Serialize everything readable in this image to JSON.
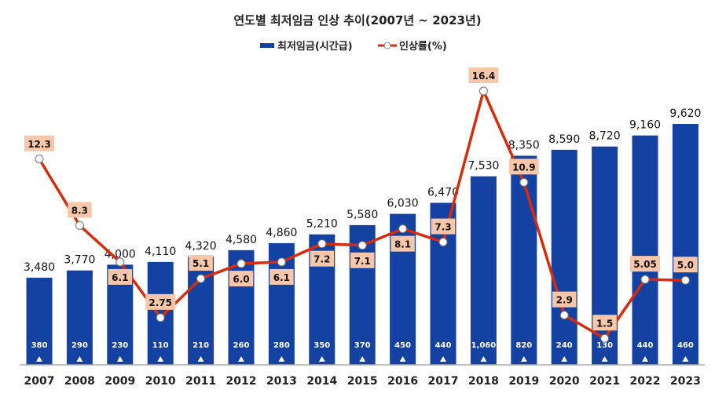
{
  "chart_data": {
    "type": "bar",
    "title": "연도별 최저임금 인상 추이(2007년 ~ 2023년)",
    "categories": [
      "2007",
      "2008",
      "2009",
      "2010",
      "2011",
      "2012",
      "2013",
      "2014",
      "2015",
      "2016",
      "2017",
      "2018",
      "2019",
      "2020",
      "2021",
      "2022",
      "2023"
    ],
    "series": [
      {
        "name": "최저임금(시간급)",
        "type": "bar",
        "color": "#1442A2",
        "values": [
          3480,
          3770,
          4000,
          4110,
          4320,
          4580,
          4860,
          5210,
          5580,
          6030,
          6470,
          7530,
          8350,
          8590,
          8720,
          9160,
          9620
        ],
        "labels": [
          "3,480",
          "3,770",
          "4,000",
          "4,110",
          "4,320",
          "4,580",
          "4,860",
          "5,210",
          "5,580",
          "6,030",
          "6,470",
          "7,530",
          "8,350",
          "8,590",
          "8,720",
          "9,160",
          "9,620"
        ]
      },
      {
        "name": "인상률(%)",
        "type": "line",
        "color": "#D92B0B",
        "axis": "secondary",
        "values": [
          12.3,
          8.3,
          6.1,
          2.75,
          5.1,
          6.0,
          6.1,
          7.2,
          7.1,
          8.1,
          7.3,
          16.4,
          10.9,
          2.9,
          1.5,
          5.05,
          5.0
        ],
        "labels": [
          "12.3",
          "8.3",
          "6.1",
          "2.75",
          "5.1",
          "6.0",
          "6.1",
          "7.2",
          "7.1",
          "8.1",
          "7.3",
          "16.4",
          "10.9",
          "2.9",
          "1.5",
          "5.05",
          "5.0"
        ],
        "label_bg": "#F8C6A8"
      }
    ],
    "increase": {
      "values": [
        380,
        290,
        230,
        110,
        210,
        260,
        280,
        350,
        370,
        450,
        440,
        1060,
        820,
        240,
        130,
        440,
        460
      ],
      "labels": [
        "380",
        "290",
        "230",
        "110",
        "210",
        "260",
        "280",
        "350",
        "370",
        "450",
        "440",
        "1,060",
        "820",
        "240",
        "130",
        "440",
        "460"
      ],
      "marker": "up-triangle-icon"
    },
    "ylim": [
      0,
      10500
    ],
    "y2lim": [
      0,
      16.4
    ],
    "grid": false,
    "legend_position": "top-center",
    "axis_color": "#AAAAAA"
  }
}
